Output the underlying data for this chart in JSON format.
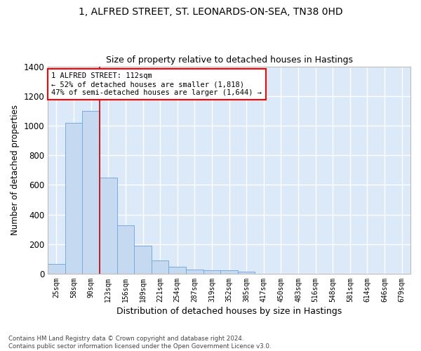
{
  "title": "1, ALFRED STREET, ST. LEONARDS-ON-SEA, TN38 0HD",
  "subtitle": "Size of property relative to detached houses in Hastings",
  "xlabel": "Distribution of detached houses by size in Hastings",
  "ylabel": "Number of detached properties",
  "footnote": "Contains HM Land Registry data © Crown copyright and database right 2024.\nContains public sector information licensed under the Open Government Licence v3.0.",
  "bar_color": "#c5d9f1",
  "bar_edge_color": "#7aaadc",
  "background_color": "#dce9f8",
  "grid_color": "#ffffff",
  "categories": [
    "25sqm",
    "58sqm",
    "90sqm",
    "123sqm",
    "156sqm",
    "189sqm",
    "221sqm",
    "254sqm",
    "287sqm",
    "319sqm",
    "352sqm",
    "385sqm",
    "417sqm",
    "450sqm",
    "483sqm",
    "516sqm",
    "548sqm",
    "581sqm",
    "614sqm",
    "646sqm",
    "679sqm"
  ],
  "values": [
    65,
    1020,
    1100,
    650,
    325,
    190,
    90,
    45,
    30,
    25,
    25,
    13,
    0,
    0,
    0,
    0,
    0,
    0,
    0,
    0,
    0
  ],
  "annotation_text": "1 ALFRED STREET: 112sqm\n← 52% of detached houses are smaller (1,818)\n47% of semi-detached houses are larger (1,644) →",
  "ylim": [
    0,
    1400
  ],
  "yticks": [
    0,
    200,
    400,
    600,
    800,
    1000,
    1200,
    1400
  ],
  "vline_color": "#cc0000",
  "vline_x_index": 2.5
}
